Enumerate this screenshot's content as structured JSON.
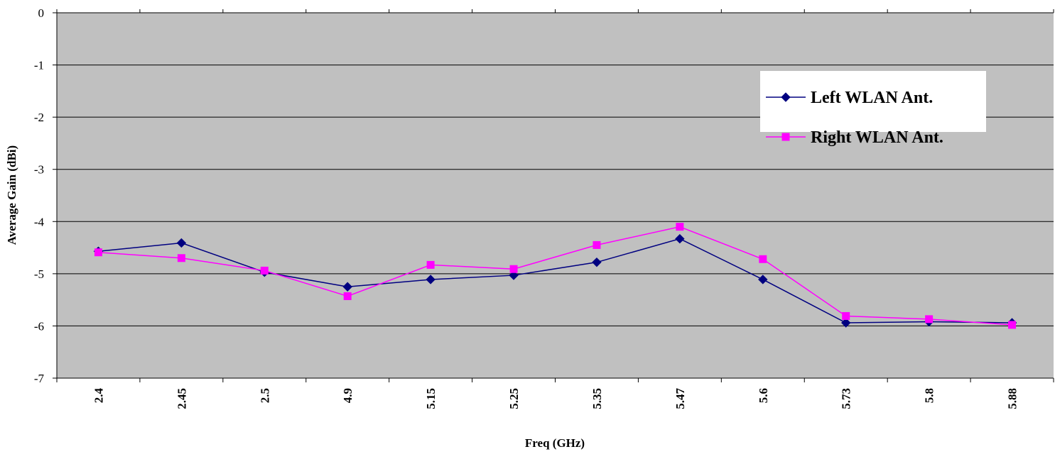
{
  "chart_data": {
    "type": "line",
    "title": "",
    "xlabel": "Freq (GHz)",
    "ylabel": "Average Gain (dBi)",
    "categories": [
      "2.4",
      "2.45",
      "2.5",
      "4.9",
      "5.15",
      "5.25",
      "5.35",
      "5.47",
      "5.6",
      "5.73",
      "5.8",
      "5.88"
    ],
    "ylim": [
      -7,
      0
    ],
    "yticks": [
      "0",
      "-1",
      "-2",
      "-3",
      "-4",
      "-5",
      "-6",
      "-7"
    ],
    "grid": true,
    "legend_position": "top-right",
    "plot_background": "#C0C0C0",
    "series": [
      {
        "name": "Left WLAN Ant.",
        "color": "#000080",
        "marker": "diamond",
        "values": [
          -4.57,
          -4.41,
          -4.97,
          -5.25,
          -5.11,
          -5.03,
          -4.78,
          -4.33,
          -5.11,
          -5.94,
          -5.92,
          -5.94
        ]
      },
      {
        "name": "Right WLAN Ant.",
        "color": "#FF00FF",
        "marker": "square",
        "values": [
          -4.59,
          -4.7,
          -4.94,
          -5.43,
          -4.83,
          -4.91,
          -4.45,
          -4.1,
          -4.72,
          -5.81,
          -5.87,
          -5.98
        ]
      }
    ]
  }
}
